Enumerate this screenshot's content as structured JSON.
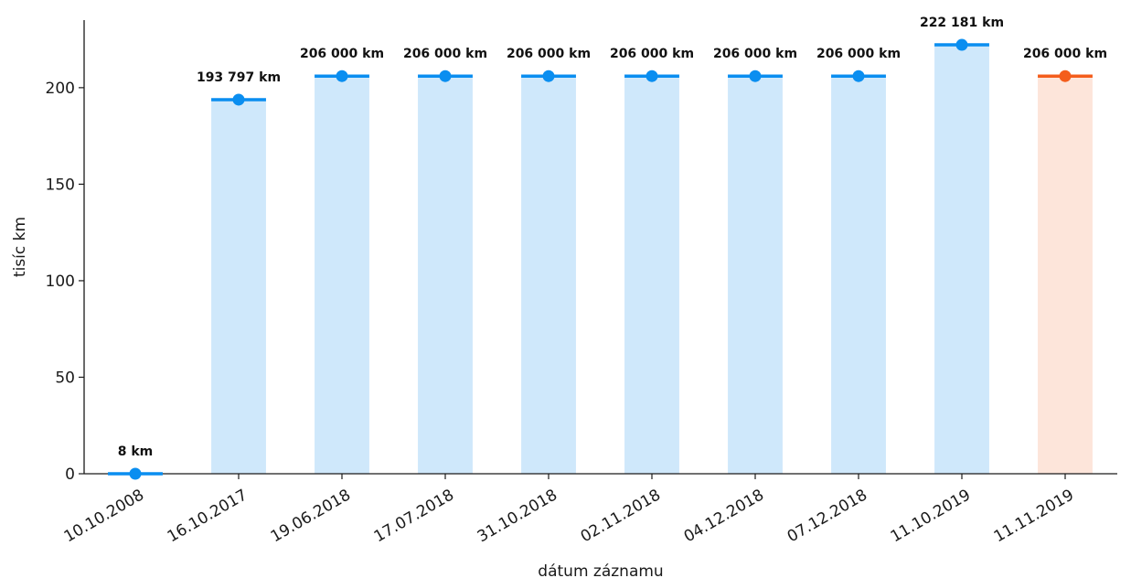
{
  "chart_data": {
    "type": "bar",
    "categories": [
      "10.10.2008",
      "16.10.2017",
      "19.06.2018",
      "17.07.2018",
      "31.10.2018",
      "02.11.2018",
      "04.12.2018",
      "07.12.2018",
      "11.10.2019",
      "11.11.2019"
    ],
    "values": [
      0.008,
      193.797,
      206.0,
      206.0,
      206.0,
      206.0,
      206.0,
      206.0,
      222.181,
      206.0
    ],
    "value_labels": [
      "8 km",
      "193 797 km",
      "206 000 km",
      "206 000 km",
      "206 000 km",
      "206 000 km",
      "206 000 km",
      "206 000 km",
      "222 181 km",
      "206 000 km"
    ],
    "highlighted_index": 9,
    "xlabel": "dátum záznamu",
    "ylabel": "tisíc km",
    "ylim": [
      0,
      235
    ],
    "yticks": [
      0,
      50,
      100,
      150,
      200
    ],
    "grid": false,
    "colors": {
      "bar": "#cfe8fb",
      "marker": "#0a8ef0",
      "highlight_bar": "#fde5da",
      "highlight_marker": "#f45d1c",
      "axis": "#1a1a1a"
    }
  }
}
